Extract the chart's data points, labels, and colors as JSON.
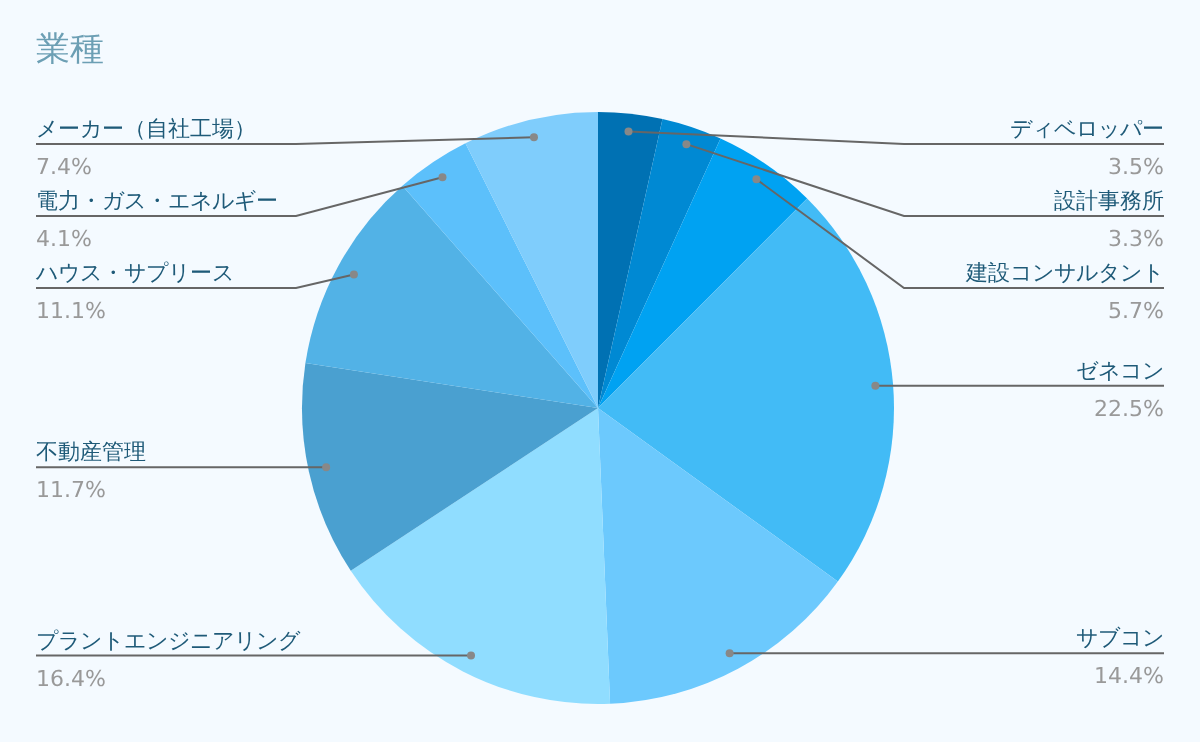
{
  "chart_data": {
    "type": "pie",
    "title": "業種",
    "categories": [
      "ディベロッパー",
      "設計事務所",
      "建設コンサルタント",
      "ゼネコン",
      "サブコン",
      "プラントエンジニアリング",
      "不動産管理",
      "ハウス・サプリース",
      "電力・ガス・エネルギー",
      "メーカー（自社工場）"
    ],
    "values": [
      3.5,
      3.3,
      5.7,
      22.5,
      14.4,
      16.4,
      11.7,
      11.1,
      4.1,
      7.4
    ],
    "colors": [
      "#0071b3",
      "#0089d3",
      "#00a2f2",
      "#42bbf6",
      "#6cc9fd",
      "#90ddff",
      "#4aa0d0",
      "#52b2e6",
      "#5cc0fb",
      "#7fcdfc"
    ],
    "value_labels": [
      "3.5%",
      "3.3%",
      "5.7%",
      "22.5%",
      "14.4%",
      "16.4%",
      "11.7%",
      "11.1%",
      "4.1%",
      "7.4%"
    ]
  }
}
